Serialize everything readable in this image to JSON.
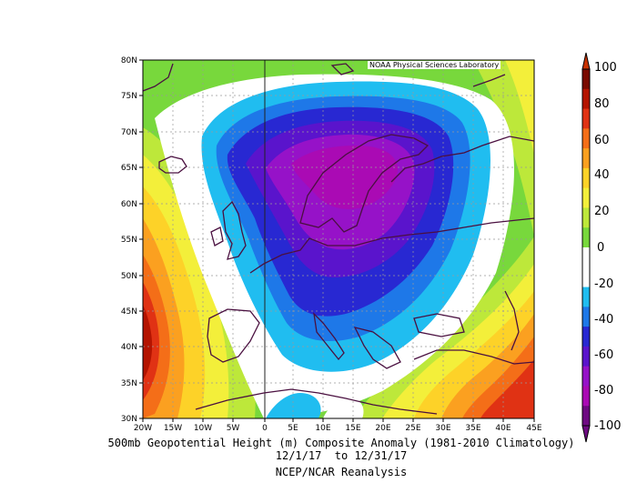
{
  "credit": "NOAA Physical Sciences Laboratory",
  "caption": {
    "line1": "500mb Geopotential Height (m) Composite Anomaly (1981-2010 Climatology)",
    "line2": "12/1/17  to 12/31/17",
    "line3": "NCEP/NCAR Reanalysis"
  },
  "map": {
    "lon_range": [
      -20,
      45
    ],
    "lat_range": [
      30,
      80
    ],
    "lon_ticks": [
      "20W",
      "15W",
      "10W",
      "5W",
      "0",
      "5E",
      "10E",
      "15E",
      "20E",
      "25E",
      "30E",
      "35E",
      "40E",
      "45E"
    ],
    "lat_ticks": [
      "30N",
      "35N",
      "40N",
      "45N",
      "50N",
      "55N",
      "60N",
      "65N",
      "70N",
      "75N",
      "80N"
    ],
    "grid": true
  },
  "colorbar": {
    "labels": [
      "100",
      "80",
      "60",
      "40",
      "20",
      "0",
      "-20",
      "-40",
      "-60",
      "-80",
      "-100"
    ],
    "colors": [
      "#7a0a00",
      "#b41400",
      "#e03214",
      "#f46e18",
      "#fba020",
      "#fdd228",
      "#f3ef3a",
      "#bde83a",
      "#78d83c",
      "#ffffff",
      "#ffffff",
      "#20bdf0",
      "#1e78e8",
      "#2828d2",
      "#5a14cc",
      "#9612c8",
      "#aa0ab4",
      "#6e0a82"
    ]
  }
}
